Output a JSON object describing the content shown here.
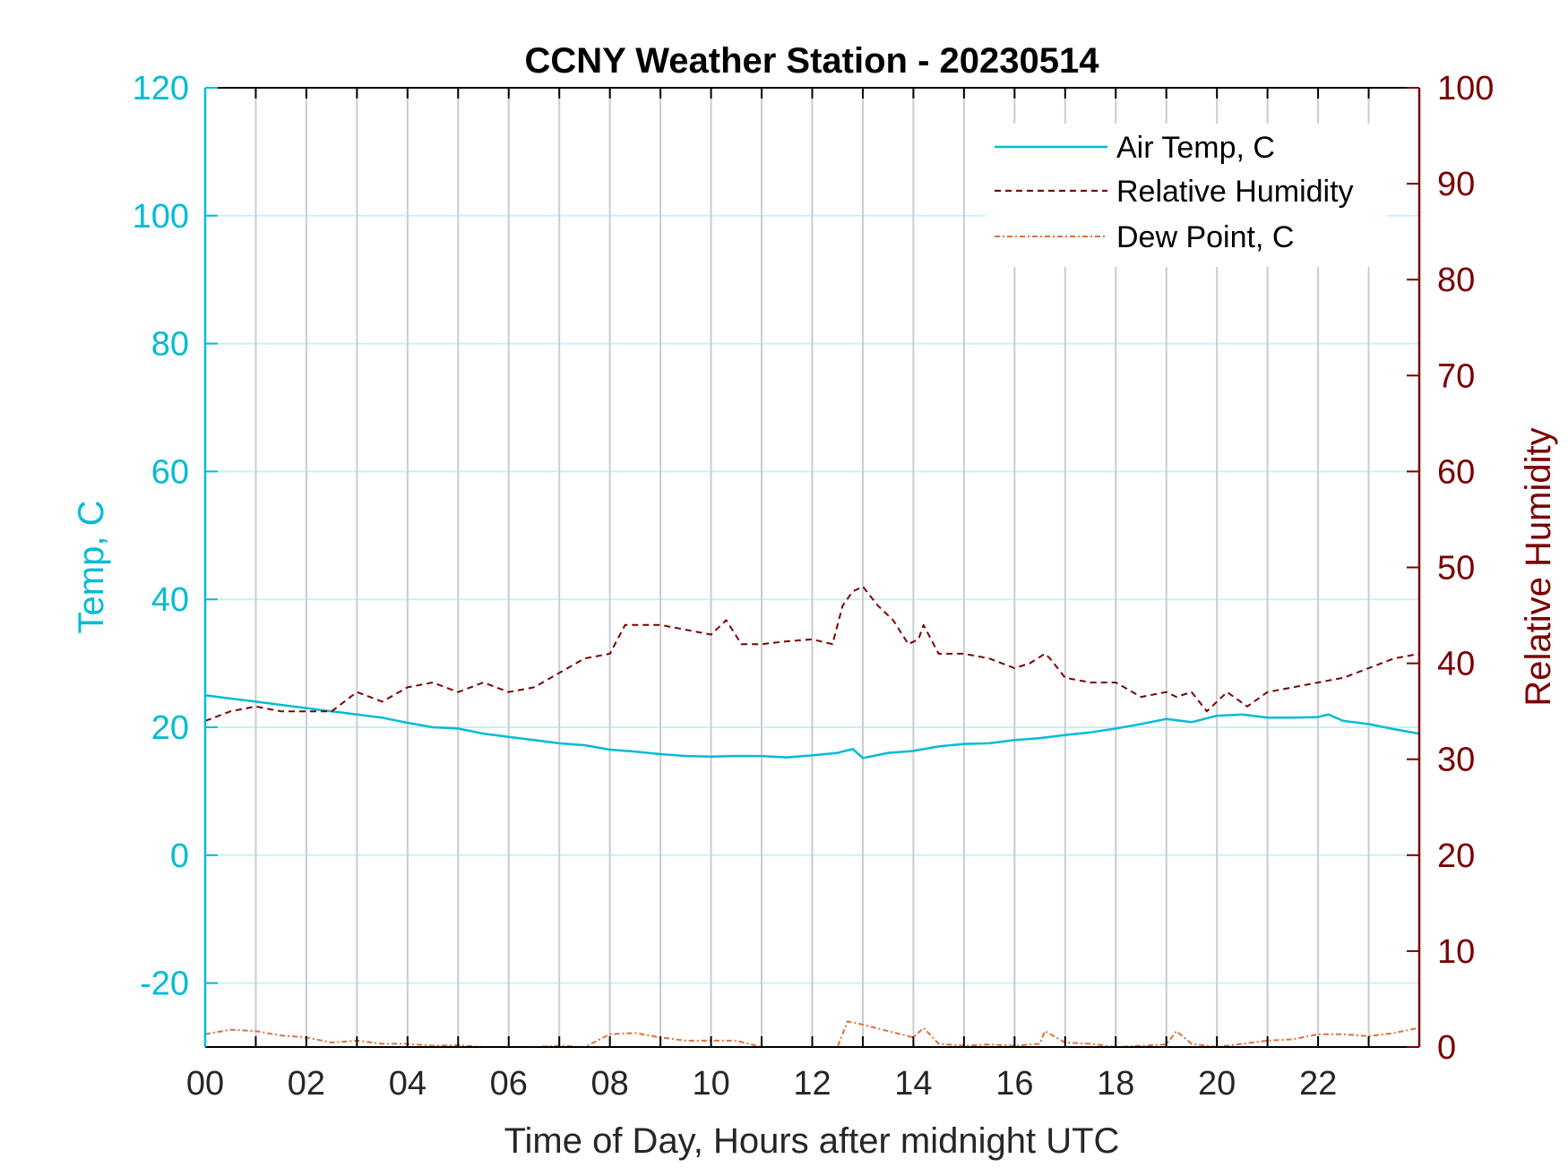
{
  "colors": {
    "temp": "#00bcd4",
    "rh": "#7b0000",
    "dew": "#e0703a",
    "grid_major": "#c8cdd2",
    "grid_minor": "#c9f0f7",
    "axis": "#000000",
    "text": "#262626"
  },
  "chart_data": {
    "type": "line",
    "title": "CCNY Weather Station - 20230514",
    "xlabel": "Time of Day, Hours after midnight UTC",
    "ylabel_left": "Temp, C",
    "ylabel_right": "Relative Humidity",
    "xlim": [
      0,
      24
    ],
    "ylim_left": [
      -30,
      120
    ],
    "ylim_right": [
      0,
      100
    ],
    "x_ticks": [
      0,
      2,
      4,
      6,
      8,
      10,
      12,
      14,
      16,
      18,
      20,
      22
    ],
    "x_tick_labels": [
      "00",
      "02",
      "04",
      "06",
      "08",
      "10",
      "12",
      "14",
      "16",
      "18",
      "20",
      "22"
    ],
    "y_left_ticks": [
      -20,
      0,
      20,
      40,
      60,
      80,
      100,
      120
    ],
    "y_left_tick_labels": [
      "-20",
      "0",
      "20",
      "40",
      "60",
      "80",
      "100",
      "120"
    ],
    "y_right_ticks": [
      0,
      10,
      20,
      30,
      40,
      50,
      60,
      70,
      80,
      90,
      100
    ],
    "y_right_tick_labels": [
      "0",
      "10",
      "20",
      "30",
      "40",
      "50",
      "60",
      "70",
      "80",
      "90",
      "100"
    ],
    "legend_position": "top-right",
    "series": [
      {
        "name": "Air Temp, C",
        "axis": "left",
        "style": "solid",
        "x": [
          0,
          0.5,
          1,
          1.5,
          2,
          2.5,
          3,
          3.5,
          4,
          4.5,
          5,
          5.5,
          6,
          6.5,
          7,
          7.5,
          8,
          8.5,
          9,
          9.5,
          10,
          10.5,
          11,
          11.5,
          12,
          12.5,
          12.8,
          13,
          13.5,
          14,
          14.5,
          15,
          15.5,
          16,
          16.5,
          17,
          17.5,
          18,
          18.5,
          19,
          19.5,
          20,
          20.5,
          21,
          21.5,
          22,
          22.2,
          22.5,
          23,
          23.5,
          24
        ],
        "values": [
          25,
          24.5,
          24,
          23.5,
          23,
          22.5,
          22,
          21.5,
          20.7,
          20,
          19.8,
          19,
          18.5,
          18,
          17.5,
          17.2,
          16.5,
          16.2,
          15.8,
          15.5,
          15.4,
          15.5,
          15.5,
          15.3,
          15.6,
          16,
          16.6,
          15.2,
          16,
          16.3,
          17,
          17.4,
          17.5,
          18,
          18.3,
          18.8,
          19.2,
          19.8,
          20.5,
          21.3,
          20.8,
          21.8,
          22,
          21.5,
          21.5,
          21.6,
          22,
          21,
          20.5,
          19.7,
          19
        ]
      },
      {
        "name": "Relative Humidity",
        "axis": "right",
        "style": "dashed",
        "x": [
          0,
          0.5,
          1,
          1.5,
          2,
          2.5,
          3,
          3.5,
          4,
          4.5,
          5,
          5.5,
          6,
          6.5,
          7,
          7.5,
          8,
          8.3,
          8.6,
          9,
          9.5,
          10,
          10.3,
          10.6,
          11,
          11.5,
          12,
          12.4,
          12.6,
          12.8,
          13,
          13.3,
          13.6,
          13.9,
          14.1,
          14.2,
          14.5,
          15,
          15.5,
          16,
          16.3,
          16.6,
          16.7,
          17,
          17.5,
          18,
          18.5,
          19,
          19.2,
          19.5,
          19.8,
          20.2,
          20.6,
          21,
          21.5,
          22,
          22.5,
          23,
          23.5,
          24
        ],
        "values": [
          34,
          35,
          35.5,
          35,
          35,
          35,
          37,
          36,
          37.5,
          38,
          37,
          38,
          37,
          37.5,
          39,
          40.5,
          41,
          44,
          44,
          44,
          43.5,
          43,
          44.5,
          42,
          42,
          42.3,
          42.5,
          42,
          46,
          47.5,
          48,
          46,
          44.5,
          42,
          42.5,
          44,
          41,
          41,
          40.5,
          39.5,
          40,
          41,
          40.5,
          38.5,
          38,
          38,
          36.5,
          37,
          36.5,
          37,
          35,
          37,
          35.5,
          37,
          37.5,
          38,
          38.5,
          39.5,
          40.5,
          41
        ]
      },
      {
        "name": "Dew Point, C",
        "axis": "left",
        "style": "dash-dot",
        "x": [
          0,
          0.5,
          1,
          1.5,
          2,
          2.5,
          3,
          3.5,
          4,
          4.5,
          5,
          5.5,
          6,
          6.5,
          7,
          7.5,
          8,
          8.5,
          9,
          9.5,
          10,
          10.5,
          11,
          11.5,
          12,
          12.5,
          12.7,
          13,
          13.5,
          14,
          14.2,
          14.5,
          15,
          15.5,
          16,
          16.5,
          16.6,
          17,
          17.5,
          18,
          18.5,
          19,
          19.2,
          19.5,
          20,
          20.5,
          21,
          21.5,
          22,
          22.5,
          23,
          23.5,
          24
        ],
        "values": [
          -28,
          -27.3,
          -27.5,
          -28.2,
          -28.5,
          -29.3,
          -29,
          -29.5,
          -29.5,
          -29.8,
          -29.7,
          -30,
          -30,
          -30,
          -29.8,
          -30,
          -28,
          -27.8,
          -28.5,
          -29,
          -29,
          -29,
          -30,
          -30,
          -30,
          -30,
          -26,
          -26.5,
          -27.5,
          -28.5,
          -27,
          -29.5,
          -29.8,
          -29.6,
          -29.8,
          -29.5,
          -27.5,
          -29.3,
          -29.5,
          -30,
          -29.8,
          -29.6,
          -27.5,
          -29.5,
          -30,
          -29.5,
          -29,
          -28.8,
          -28,
          -28,
          -28.3,
          -27.8,
          -27
        ]
      }
    ]
  }
}
